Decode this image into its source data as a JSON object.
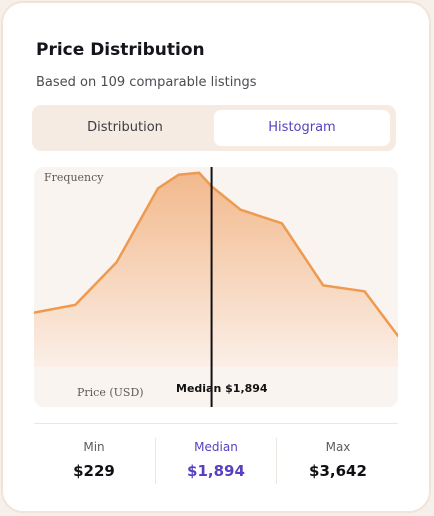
{
  "card": {
    "title": "Price Distribution",
    "subtitle": "Based on 109 comparable listings"
  },
  "tabs": [
    {
      "label": "Distribution",
      "selected": false
    },
    {
      "label": "Histogram",
      "selected": true
    }
  ],
  "chart": {
    "y_label": "Frequency",
    "x_label": "Price (USD)",
    "median_label": "Median $1,894",
    "colors": {
      "line": "#ee9a4f",
      "fill_top": "#f2b98c",
      "fill_bottom": "#fbefe7",
      "median_line": "#111111"
    }
  },
  "chart_data": {
    "type": "area",
    "ylabel": "Frequency",
    "xlabel": "Price (USD)",
    "x": [
      229,
      616,
      1004,
      1391,
      1584,
      1778,
      1894,
      2165,
      2553,
      2941,
      3328,
      3642
    ],
    "values": [
      0.28,
      0.32,
      0.54,
      0.92,
      0.99,
      1.0,
      0.93,
      0.81,
      0.74,
      0.42,
      0.39,
      0.16
    ],
    "xlim": [
      229,
      3642
    ],
    "ylim": [
      0,
      1.03
    ],
    "median": 1894,
    "grid": false,
    "legend": "none"
  },
  "stats": {
    "min": {
      "label": "Min",
      "value": "$229"
    },
    "median": {
      "label": "Median",
      "value": "$1,894"
    },
    "max": {
      "label": "Max",
      "value": "$3,642"
    }
  }
}
